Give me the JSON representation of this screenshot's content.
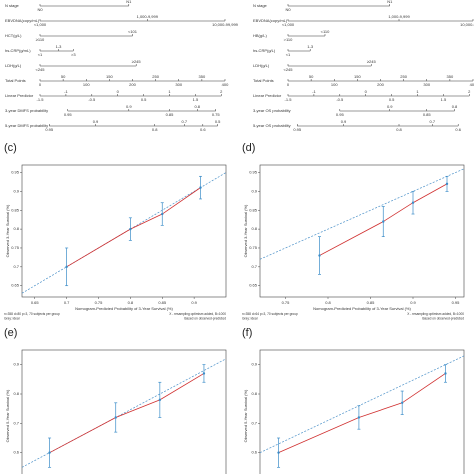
{
  "chart_data": [
    {
      "type": "nomogram",
      "rows": [
        {
          "name": "N stage",
          "labels": [
            "N0",
            "N1"
          ],
          "points": [
            0,
            48
          ]
        },
        {
          "name": "EBVDNA(copy/mL)",
          "labels": [
            "<1,000",
            "1,000-9,999",
            "10,000-99,999"
          ],
          "points": [
            0,
            58,
            100
          ]
        },
        {
          "name": "HCT(g/L)",
          "labels": [
            "≥110",
            "<101"
          ],
          "points": [
            0,
            50
          ]
        },
        {
          "name": "hs-CRP(g/mL)",
          "labels": [
            "<1",
            "1-3",
            ">3"
          ],
          "points": [
            0,
            10,
            18
          ]
        },
        {
          "name": "LDH(g/L)",
          "labels": [
            "<245",
            "≥245"
          ],
          "points": [
            0,
            52
          ]
        },
        {
          "name": "Total Points",
          "labels": [
            0,
            50,
            100,
            150,
            200,
            250,
            300,
            350,
            400
          ],
          "points": [
            0,
            12.5,
            25,
            37.5,
            50,
            62.5,
            75,
            87.5,
            100
          ]
        },
        {
          "name": "Linear Predictor",
          "labels": [
            -1.5,
            -1,
            -0.5,
            0,
            0.5,
            1,
            1.5,
            2
          ],
          "points": [
            0,
            14,
            28,
            42,
            56,
            70,
            84,
            98
          ]
        },
        {
          "name": "3-year DMFS probability",
          "labels": [
            0.95,
            0.9,
            0.85,
            0.8,
            0.75
          ],
          "points": [
            15,
            48,
            70,
            85,
            95
          ]
        },
        {
          "name": "5-year DMFS probability",
          "labels": [
            0.95,
            0.9,
            0.8,
            0.7,
            0.6,
            0.5
          ],
          "points": [
            5,
            30,
            62,
            78,
            88,
            96
          ]
        }
      ]
    },
    {
      "type": "nomogram",
      "rows": [
        {
          "name": "N stage",
          "labels": [
            "N0",
            "N1"
          ],
          "points": [
            0,
            55
          ]
        },
        {
          "name": "EBVDNA(copy/mL)",
          "labels": [
            "<1,000",
            "1,000-9,999",
            "10,000-99,999"
          ],
          "points": [
            0,
            60,
            100
          ]
        },
        {
          "name": "HB(g/L)",
          "labels": [
            ">110",
            "<110"
          ],
          "points": [
            0,
            20
          ]
        },
        {
          "name": "hs-CRP(g/L)",
          "labels": [
            "<1",
            "1-3"
          ],
          "points": [
            0,
            12
          ]
        },
        {
          "name": "LDH(g/L)",
          "labels": [
            "<245",
            "≥245"
          ],
          "points": [
            0,
            45
          ]
        },
        {
          "name": "Total Points",
          "labels": [
            0,
            50,
            100,
            150,
            200,
            250,
            300,
            350,
            400
          ],
          "points": [
            0,
            12.5,
            25,
            37.5,
            50,
            62.5,
            75,
            87.5,
            100
          ]
        },
        {
          "name": "Linear Predictor",
          "labels": [
            -1.5,
            -1,
            -0.5,
            0,
            0.5,
            1,
            1.5,
            2
          ],
          "points": [
            0,
            14,
            28,
            42,
            56,
            70,
            84,
            98
          ]
        },
        {
          "name": "3-year OS probability",
          "labels": [
            0.95,
            0.9,
            0.85,
            0.8
          ],
          "points": [
            28,
            55,
            75,
            90
          ]
        },
        {
          "name": "5-year OS probability",
          "labels": [
            0.95,
            0.9,
            0.8,
            0.7,
            0.6
          ],
          "points": [
            5,
            30,
            60,
            78,
            92
          ]
        }
      ]
    },
    {
      "type": "calibration",
      "label": "(c)",
      "xlabel": "Nomogram-Predicted Probability of 3-Year Survival (%)",
      "ylabel": "Observed 3-Year Survival (%)",
      "xlim": [
        0.63,
        0.95
      ],
      "xticks": [
        0.65,
        0.7,
        0.75,
        0.8,
        0.85,
        0.9
      ],
      "ylim": [
        0.62,
        0.97
      ],
      "yticks": [
        0.65,
        0.7,
        0.75,
        0.8,
        0.85,
        0.9,
        0.95
      ],
      "x": [
        0.7,
        0.8,
        0.85,
        0.91
      ],
      "y": [
        0.7,
        0.8,
        0.84,
        0.91
      ],
      "err": [
        0.05,
        0.03,
        0.03,
        0.03
      ],
      "notes": [
        "n=358 d=80 p=3, 70 subjects per group",
        "X - resampling optimism added, B=1000",
        "Gray: ideal",
        "Based on observed-predicted"
      ]
    },
    {
      "type": "calibration",
      "label": "(d)",
      "xlabel": "Nomogram-Predicted Probability of 3-Year Survival (%)",
      "ylabel": "Observed 3-Year Survival (%)",
      "xlim": [
        0.72,
        0.96
      ],
      "xticks": [
        0.75,
        0.8,
        0.85,
        0.9,
        0.95
      ],
      "ylim": [
        0.62,
        0.97
      ],
      "yticks": [
        0.65,
        0.7,
        0.75,
        0.8,
        0.85,
        0.9,
        0.95
      ],
      "x": [
        0.79,
        0.865,
        0.9,
        0.94
      ],
      "y": [
        0.73,
        0.82,
        0.87,
        0.92
      ],
      "err": [
        0.05,
        0.04,
        0.03,
        0.02
      ],
      "notes": [
        "n=358 d=64 p=3, 70 subjects per group",
        "X - resampling optimism added, B=1000",
        "Gray: ideal",
        "Based on observed-predicted"
      ]
    },
    {
      "type": "calibration",
      "label": "(e)",
      "ylabel": "Observed 5-Year Survival (%)",
      "xlim": [
        0.55,
        0.92
      ],
      "ylim": [
        0.5,
        0.95
      ],
      "yticks": [
        0.6,
        0.7,
        0.8,
        0.9
      ],
      "x": [
        0.6,
        0.72,
        0.8,
        0.88
      ],
      "y": [
        0.6,
        0.72,
        0.78,
        0.87
      ],
      "err": [
        0.05,
        0.05,
        0.06,
        0.03
      ]
    },
    {
      "type": "calibration",
      "label": "(f)",
      "ylabel": "Observed 5-Year Survival (%)",
      "xlim": [
        0.6,
        0.93
      ],
      "ylim": [
        0.5,
        0.95
      ],
      "yticks": [
        0.6,
        0.7,
        0.8,
        0.9
      ],
      "x": [
        0.63,
        0.76,
        0.83,
        0.9
      ],
      "y": [
        0.6,
        0.72,
        0.77,
        0.87
      ],
      "err": [
        0.05,
        0.04,
        0.04,
        0.03
      ]
    }
  ]
}
